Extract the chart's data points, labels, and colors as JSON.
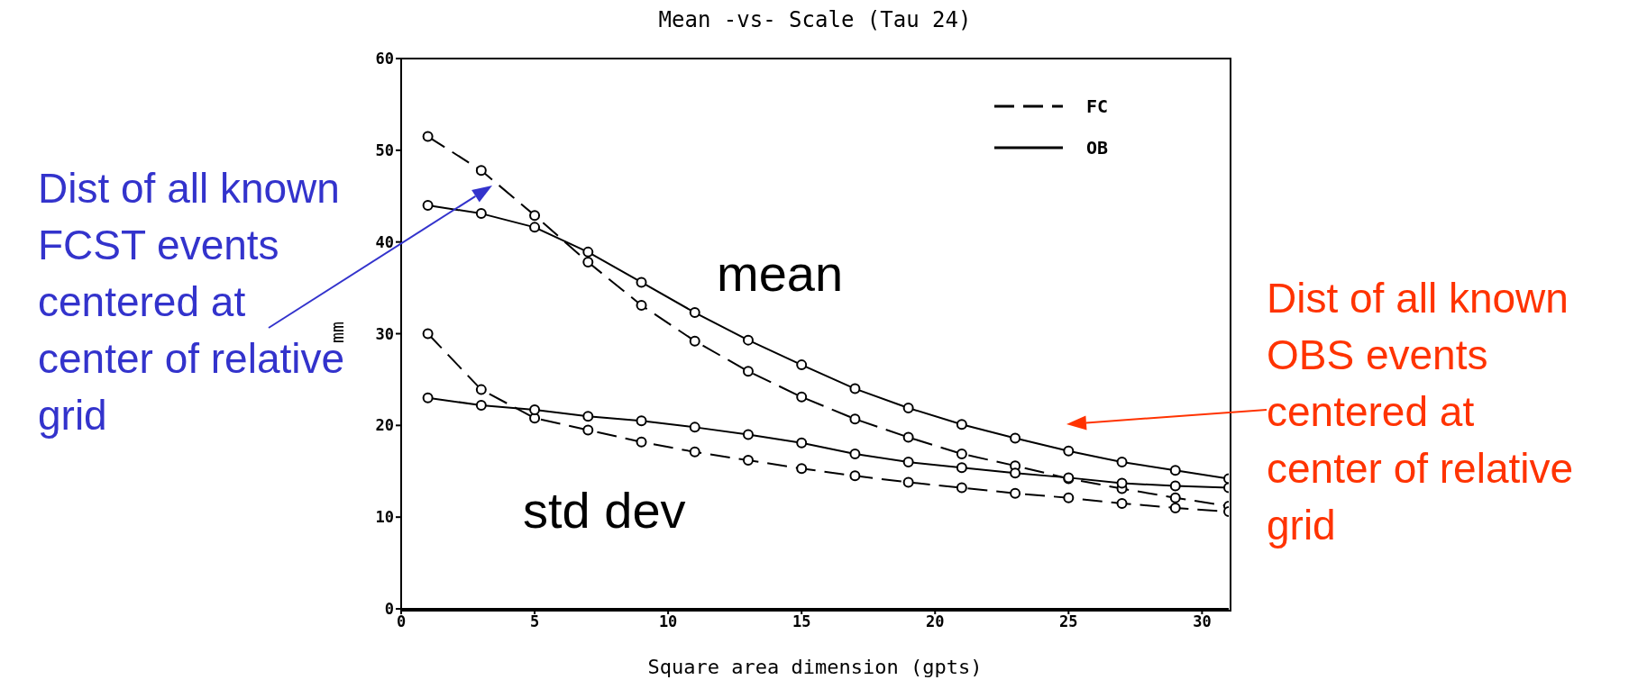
{
  "chart_data": {
    "type": "line",
    "title": "Mean -vs- Scale (Tau 24)",
    "xlabel": "Square area dimension (gpts)",
    "ylabel": "mm",
    "x": [
      1,
      3,
      5,
      7,
      9,
      11,
      13,
      15,
      17,
      19,
      21,
      23,
      25,
      27,
      29,
      31
    ],
    "series": [
      {
        "name": "FC",
        "color": "#000000",
        "line_style": "dashed",
        "values": [
          51.5,
          47.8,
          42.9,
          37.8,
          33.1,
          29.2,
          25.9,
          23.1,
          20.7,
          18.7,
          16.9,
          15.6,
          14.2,
          13.1,
          12.1,
          11.2
        ]
      },
      {
        "name": "OB",
        "color": "#000000",
        "line_style": "solid",
        "values": [
          44,
          43.1,
          41.6,
          38.9,
          35.6,
          32.3,
          29.3,
          26.6,
          24,
          21.9,
          20.1,
          18.6,
          17.2,
          16,
          15.1,
          14.2
        ]
      },
      {
        "color": "#000000",
        "line_style": "dashed",
        "values": [
          30,
          23.9,
          20.8,
          19.5,
          18.2,
          17.1,
          16.2,
          15.3,
          14.5,
          13.8,
          13.2,
          12.6,
          12.1,
          11.5,
          11,
          10.6
        ]
      },
      {
        "color": "#000000",
        "line_style": "solid",
        "values": [
          23,
          22.2,
          21.7,
          21,
          20.5,
          19.8,
          19,
          18.1,
          16.9,
          16,
          15.4,
          14.8,
          14.3,
          13.7,
          13.4,
          13.2
        ]
      }
    ],
    "xlim": [
      0,
      31
    ],
    "xticks": [
      0,
      5,
      10,
      15,
      20,
      25,
      30
    ],
    "ylim": [
      0,
      60
    ],
    "yticks": [
      0,
      10,
      20,
      30,
      40,
      50,
      60
    ],
    "marker": "circle",
    "legend": "top right",
    "grid": false,
    "annotations": [
      "mean",
      "std dev",
      "Dist of all known FCST events centered at center of relative grid",
      "Dist of all known OBS events centered at center of relative grid"
    ]
  }
}
